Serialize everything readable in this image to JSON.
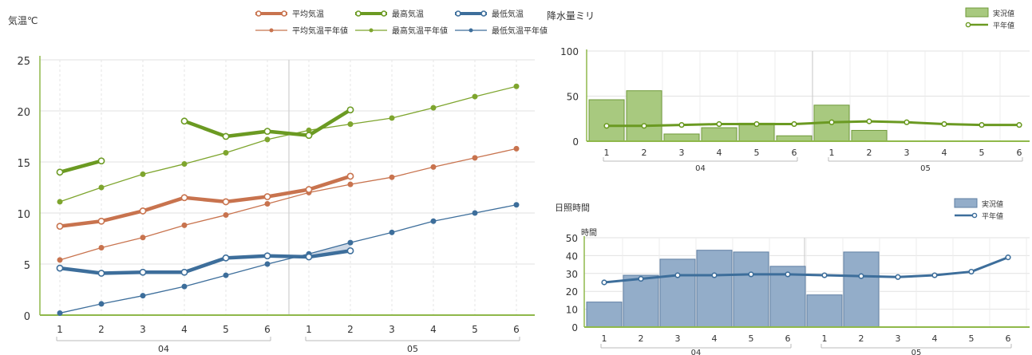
{
  "chart_data": [
    {
      "type": "line",
      "ylabel": "気温℃",
      "ylim": [
        0,
        25
      ],
      "y_ticks": [
        "0",
        "5",
        "10",
        "15",
        "20",
        "25"
      ],
      "x": [
        "1",
        "2",
        "3",
        "4",
        "5",
        "6",
        "1",
        "2",
        "3",
        "4",
        "5",
        "6"
      ],
      "groups": [
        "04",
        "05"
      ],
      "legend_placement": "top",
      "series": [
        {
          "name": "平均気温",
          "style": "bold",
          "color": "#c8734e",
          "values": [
            8.7,
            9.2,
            10.2,
            11.5,
            11.1,
            11.6,
            12.3,
            13.6,
            null,
            null,
            null,
            null
          ]
        },
        {
          "name": "最高気温",
          "style": "bold",
          "color": "#6b9a22",
          "values": [
            14.0,
            15.1,
            null,
            19.0,
            17.5,
            18.0,
            17.6,
            20.1,
            null,
            null,
            null,
            null
          ]
        },
        {
          "name": "最低気温",
          "style": "bold",
          "color": "#3d6e9b",
          "values": [
            4.6,
            4.1,
            4.2,
            4.2,
            5.6,
            5.8,
            5.7,
            6.3,
            null,
            null,
            null,
            null
          ]
        },
        {
          "name": "平均気温平年値",
          "style": "thin",
          "color": "#c8734e",
          "values": [
            5.4,
            6.6,
            7.6,
            8.8,
            9.8,
            10.9,
            12.0,
            12.8,
            13.5,
            14.5,
            15.4,
            16.3
          ]
        },
        {
          "name": "最高気温平年値",
          "style": "thin",
          "color": "#7ea52e",
          "values": [
            11.1,
            12.5,
            13.8,
            14.8,
            15.9,
            17.2,
            18.1,
            18.7,
            19.3,
            20.3,
            21.4,
            22.4
          ]
        },
        {
          "name": "最低気温平年値",
          "style": "thin",
          "color": "#3d6e9b",
          "values": [
            0.2,
            1.1,
            1.9,
            2.8,
            3.9,
            5.0,
            6.0,
            7.1,
            8.1,
            9.2,
            10.0,
            10.8
          ]
        }
      ]
    },
    {
      "type": "bar",
      "ylabel": "降水量ミリ",
      "ylim": [
        0,
        100
      ],
      "y_ticks": [
        "0",
        "50",
        "100"
      ],
      "x": [
        "1",
        "2",
        "3",
        "4",
        "5",
        "6",
        "1",
        "2",
        "3",
        "4",
        "5",
        "6"
      ],
      "groups": [
        "04",
        "05"
      ],
      "legend_placement": "top-right",
      "series": [
        {
          "name": "実況値",
          "kind": "bar",
          "color": "#a8c97f",
          "values": [
            46,
            56,
            8,
            15,
            20,
            6,
            40,
            12,
            null,
            null,
            null,
            null
          ]
        },
        {
          "name": "平年値",
          "kind": "line",
          "color": "#6b9a22",
          "values": [
            17,
            17,
            18,
            19,
            19,
            19,
            21,
            22,
            21,
            19,
            18,
            18
          ]
        }
      ]
    },
    {
      "type": "bar",
      "title": "日照時間",
      "ylabel": "時間",
      "ylim": [
        0,
        50
      ],
      "y_ticks": [
        "0",
        "10",
        "20",
        "30",
        "40",
        "50"
      ],
      "x": [
        "1",
        "2",
        "3",
        "4",
        "5",
        "6",
        "1",
        "2",
        "3",
        "4",
        "5",
        "6"
      ],
      "groups": [
        "04",
        "05"
      ],
      "legend_placement": "top-right",
      "series": [
        {
          "name": "実況値",
          "kind": "bar",
          "color": "#93adc9",
          "values": [
            14,
            29,
            38,
            43,
            42,
            34,
            18,
            42,
            null,
            null,
            null,
            null
          ]
        },
        {
          "name": "平年値",
          "kind": "line",
          "color": "#3d6e9b",
          "values": [
            25,
            27,
            29,
            29,
            29.5,
            29.5,
            29,
            28.5,
            28,
            29,
            31,
            39
          ]
        }
      ]
    }
  ]
}
